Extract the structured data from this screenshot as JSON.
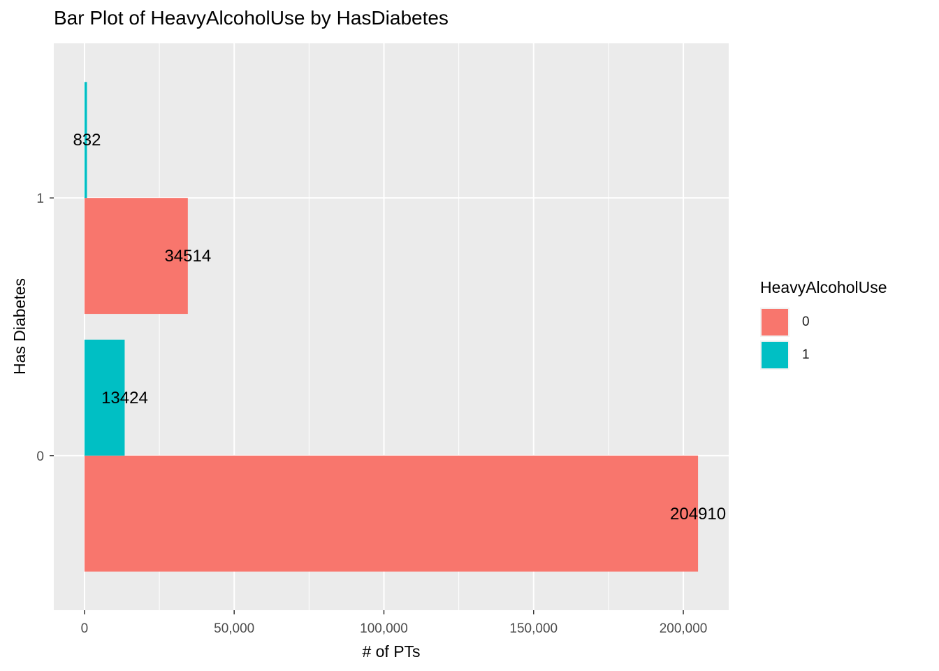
{
  "chart_data": {
    "type": "bar",
    "orientation": "horizontal",
    "position": "dodge",
    "title": "Bar Plot of HeavyAlcoholUse by HasDiabetes",
    "xlabel": "# of PTs",
    "ylabel": "Has Diabetes",
    "categories": [
      "0",
      "1"
    ],
    "series": [
      {
        "name": "0",
        "values": [
          204910,
          34514
        ],
        "labels": [
          "204910",
          "34514"
        ],
        "color": "#F8766D"
      },
      {
        "name": "1",
        "values": [
          13424,
          832
        ],
        "labels": [
          "13424",
          "832"
        ],
        "color": "#00BFC4"
      }
    ],
    "xlim": [
      -10246,
      215156
    ],
    "xticks": [
      0,
      50000,
      100000,
      150000,
      200000
    ],
    "xtick_labels": [
      "0",
      "50,000",
      "100,000",
      "150,000",
      "200,000"
    ],
    "legend": {
      "title": "HeavyAlcoholUse",
      "position": "right",
      "entries": [
        "0",
        "1"
      ]
    },
    "grid": true,
    "panel_background": "#EBEBEB"
  }
}
